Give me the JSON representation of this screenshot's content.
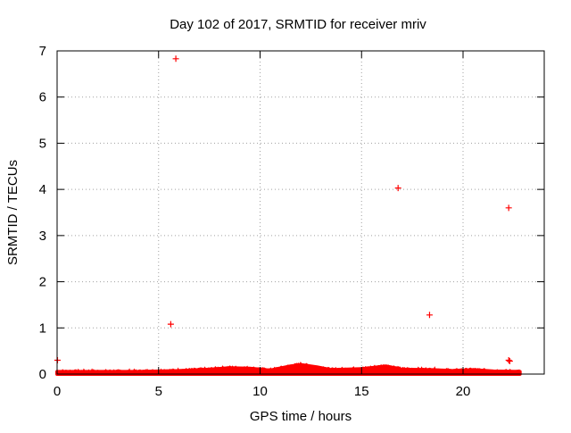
{
  "chart_data": {
    "type": "scatter",
    "title": "Day 102 of 2017, SRMTID for receiver mriv",
    "xlabel": "GPS time / hours",
    "ylabel": "SRMTID / TECUs",
    "xlim": [
      0,
      24
    ],
    "ylim": [
      0,
      7
    ],
    "xticks": [
      {
        "value": 0,
        "label": "0"
      },
      {
        "value": 5,
        "label": "5"
      },
      {
        "value": 10,
        "label": "10"
      },
      {
        "value": 15,
        "label": "15"
      },
      {
        "value": 20,
        "label": "20"
      }
    ],
    "yticks": [
      {
        "value": 0,
        "label": "0"
      },
      {
        "value": 1,
        "label": "1"
      },
      {
        "value": 2,
        "label": "2"
      },
      {
        "value": 3,
        "label": "3"
      },
      {
        "value": 4,
        "label": "4"
      },
      {
        "value": 5,
        "label": "5"
      },
      {
        "value": 6,
        "label": "6"
      },
      {
        "value": 7,
        "label": "7"
      }
    ],
    "grid": true,
    "marker": "plus",
    "color": "#ff0000",
    "series": [
      {
        "name": "SRMTID",
        "points": [
          {
            "x": 0.02,
            "y": 0.3
          },
          {
            "x": 5.6,
            "y": 1.08
          },
          {
            "x": 5.85,
            "y": 6.83
          },
          {
            "x": 16.8,
            "y": 4.03
          },
          {
            "x": 18.35,
            "y": 1.28
          },
          {
            "x": 22.25,
            "y": 3.6
          },
          {
            "x": 22.25,
            "y": 0.3
          },
          {
            "x": 22.3,
            "y": 0.28
          }
        ],
        "band": {
          "x_start": 0,
          "x_end": 22.8,
          "profile": [
            {
              "x": 0,
              "y": 0.05
            },
            {
              "x": 2,
              "y": 0.05
            },
            {
              "x": 4,
              "y": 0.05
            },
            {
              "x": 6,
              "y": 0.07
            },
            {
              "x": 7.5,
              "y": 0.1
            },
            {
              "x": 8.5,
              "y": 0.13
            },
            {
              "x": 9.5,
              "y": 0.12
            },
            {
              "x": 10.5,
              "y": 0.08
            },
            {
              "x": 11.5,
              "y": 0.17
            },
            {
              "x": 12,
              "y": 0.2
            },
            {
              "x": 12.8,
              "y": 0.15
            },
            {
              "x": 13.5,
              "y": 0.09
            },
            {
              "x": 15,
              "y": 0.11
            },
            {
              "x": 16.2,
              "y": 0.17
            },
            {
              "x": 17,
              "y": 0.1
            },
            {
              "x": 18.5,
              "y": 0.09
            },
            {
              "x": 19.5,
              "y": 0.07
            },
            {
              "x": 20.5,
              "y": 0.09
            },
            {
              "x": 21.5,
              "y": 0.06
            },
            {
              "x": 22.8,
              "y": 0.05
            }
          ]
        }
      }
    ]
  }
}
